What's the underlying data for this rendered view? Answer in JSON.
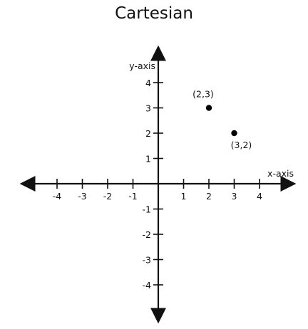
{
  "chart_data": {
    "type": "scatter",
    "title": "Cartesian",
    "xlabel": "x-axis",
    "ylabel": "y-axis",
    "xlim": [
      -5,
      5
    ],
    "ylim": [
      -5,
      5
    ],
    "x_ticks": [
      -4,
      -3,
      -2,
      -1,
      1,
      2,
      3,
      4
    ],
    "y_ticks": [
      4,
      3,
      2,
      1,
      -1,
      -2,
      -3,
      -4
    ],
    "grid": false,
    "points": [
      {
        "x": 2,
        "y": 3,
        "label": "(2,3)"
      },
      {
        "x": 3,
        "y": 2,
        "label": "(3,2)"
      }
    ],
    "colors": {
      "axis": "#111111",
      "point": "#000000"
    }
  }
}
